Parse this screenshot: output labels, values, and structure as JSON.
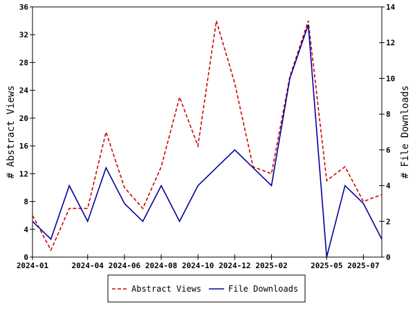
{
  "chart_data": {
    "type": "line",
    "x_unit": "month",
    "x": [
      "2024-01",
      "2024-02",
      "2024-03",
      "2024-04",
      "2024-05",
      "2024-06",
      "2024-07",
      "2024-08",
      "2024-09",
      "2024-10",
      "2024-11",
      "2024-12",
      "2025-01",
      "2025-02",
      "2025-03",
      "2025-04",
      "2025-05",
      "2025-06",
      "2025-07",
      "2025-08"
    ],
    "xlim": [
      "2024-01",
      "2025-08"
    ],
    "xticks": [
      "2024-01",
      "2024-04",
      "2024-06",
      "2024-08",
      "2024-10",
      "2024-12",
      "2025-02",
      "2025-05",
      "2025-07"
    ],
    "ylabel": "# Abstract Views",
    "ylim": [
      0,
      36
    ],
    "yticks": [
      0,
      4,
      8,
      12,
      16,
      20,
      24,
      28,
      32,
      36
    ],
    "y2label": "# File Downloads",
    "y2lim": [
      0,
      14
    ],
    "y2ticks": [
      0,
      2,
      4,
      6,
      8,
      10,
      12,
      14
    ],
    "grid": false,
    "legend_position": "bottom-center",
    "series": [
      {
        "name": "Abstract Views",
        "axis": "left",
        "color": "#cc0000",
        "style": "dashed",
        "values": [
          6,
          1,
          7,
          7,
          18,
          10,
          7,
          13,
          23,
          16,
          34,
          25,
          13,
          12,
          26,
          34,
          11,
          13,
          8,
          9
        ]
      },
      {
        "name": "File Downloads",
        "axis": "right",
        "color": "#000099",
        "style": "solid",
        "values": [
          2,
          1,
          4,
          2,
          5,
          3,
          2,
          4,
          2,
          4,
          5,
          6,
          5,
          4,
          10,
          13,
          0,
          4,
          3,
          1
        ]
      }
    ]
  }
}
